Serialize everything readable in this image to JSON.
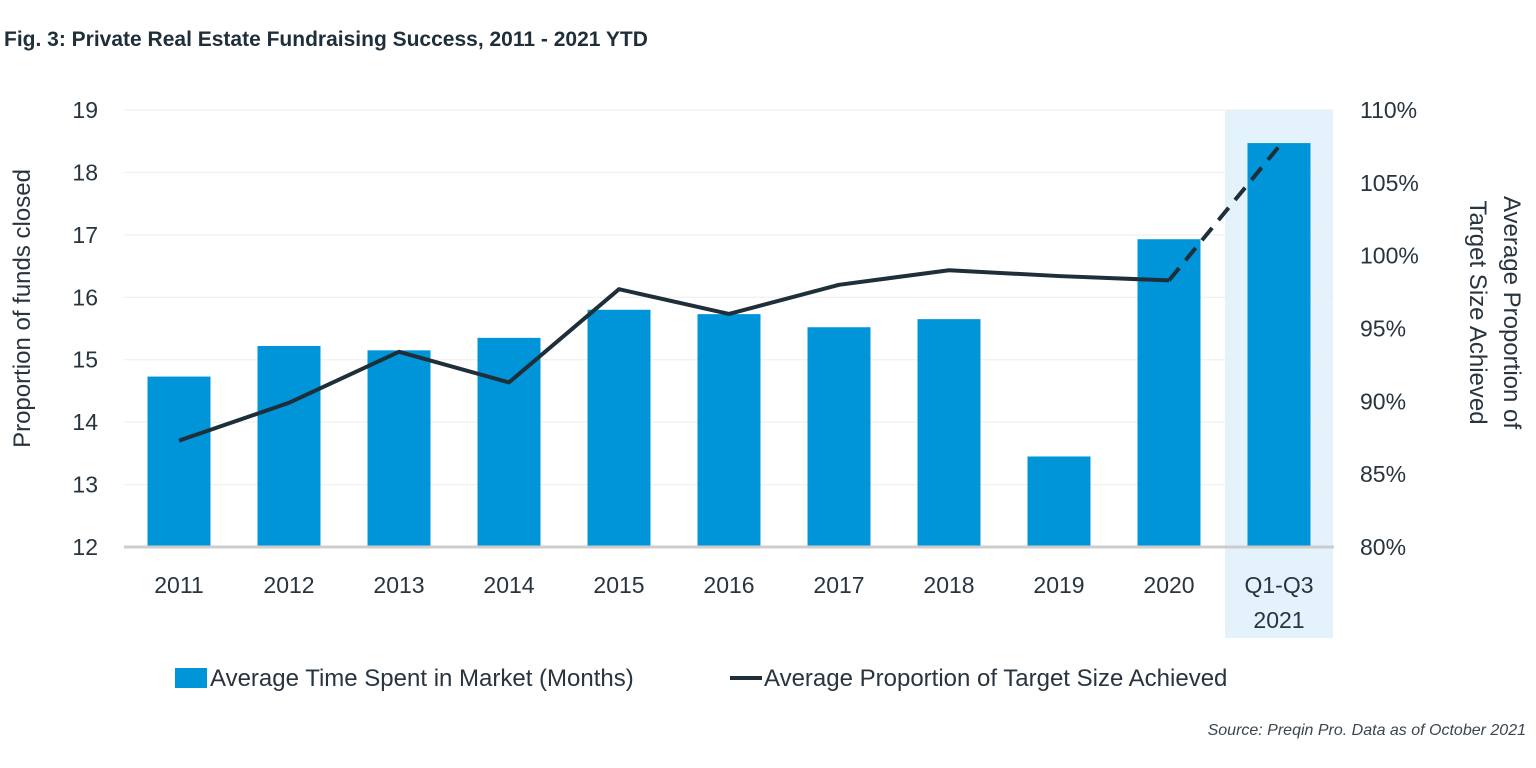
{
  "title": "Fig. 3: Private Real Estate Fundraising Success, 2011 - 2021 YTD",
  "source": "Source: Preqin Pro. Data as of October 2021",
  "colors": {
    "bar": "#0095d9",
    "line": "#1e2f3a",
    "highlight": "#e4f3fb",
    "grid": "#eeeeee",
    "axis": "#cccccc",
    "text": "#28343e"
  },
  "chart_data": {
    "type": "bar",
    "title": "Fig. 3: Private Real Estate Fundraising Success, 2011 - 2021 YTD",
    "categories": [
      {
        "label": "2011",
        "line2": ""
      },
      {
        "label": "2012",
        "line2": ""
      },
      {
        "label": "2013",
        "line2": ""
      },
      {
        "label": "2014",
        "line2": ""
      },
      {
        "label": "2015",
        "line2": ""
      },
      {
        "label": "2016",
        "line2": ""
      },
      {
        "label": "2017",
        "line2": ""
      },
      {
        "label": "2018",
        "line2": ""
      },
      {
        "label": "2019",
        "line2": ""
      },
      {
        "label": "2020",
        "line2": ""
      },
      {
        "label": "Q1-Q3",
        "line2": "2021"
      }
    ],
    "highlighted_category_index": 10,
    "series": [
      {
        "name": "Average Time Spent in Market (Months)",
        "type": "bar",
        "axis": "left",
        "values": [
          14.73,
          15.22,
          15.15,
          15.35,
          15.8,
          15.73,
          15.52,
          15.65,
          13.45,
          16.93,
          18.47
        ]
      },
      {
        "name": "Average Proportion of Target Size Achieved",
        "type": "line",
        "axis": "right",
        "values": [
          87.3,
          89.9,
          93.4,
          91.3,
          97.7,
          96.0,
          98.0,
          99.0,
          98.6,
          98.3,
          107.5
        ],
        "dashed_last_segment": true
      }
    ],
    "y_left": {
      "label": "Proportion of funds closed",
      "range": [
        12,
        19
      ],
      "ticks": [
        12,
        13,
        14,
        15,
        16,
        17,
        18,
        19
      ],
      "tick_labels": [
        "12",
        "13",
        "14",
        "15",
        "16",
        "17",
        "18",
        "19"
      ]
    },
    "y_right": {
      "label_line1": "Average Proportion of",
      "label_line2": "Target Size Achieved",
      "range": [
        80,
        110
      ],
      "ticks": [
        80,
        85,
        90,
        95,
        100,
        105,
        110
      ],
      "tick_labels": [
        "80%",
        "85%",
        "90%",
        "95%",
        "100%",
        "105%",
        "110%"
      ]
    },
    "grid": true,
    "legend_position": "bottom-center"
  }
}
